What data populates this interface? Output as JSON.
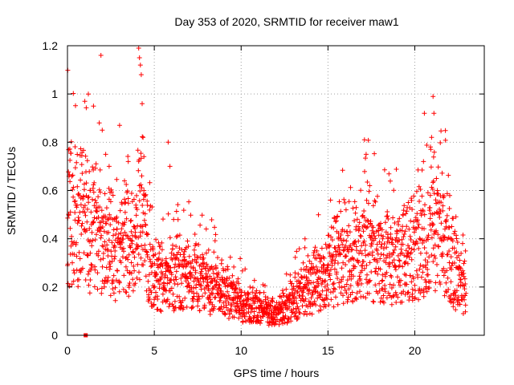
{
  "chart_data": {
    "type": "scatter",
    "title": "Day 353 of 2020, SRMTID for receiver maw1",
    "xlabel": "GPS time / hours",
    "ylabel": "SRMTID / TECUs",
    "xlim": [
      0,
      24
    ],
    "ylim": [
      0,
      1.2
    ],
    "x_ticks": [
      0,
      5,
      10,
      15,
      20
    ],
    "x_tick_labels": [
      "0",
      "5",
      "10",
      "15",
      "20"
    ],
    "y_ticks": [
      0,
      0.2,
      0.4,
      0.6,
      0.8,
      1,
      1.2
    ],
    "y_tick_labels": [
      "0",
      "0.2",
      "0.4",
      "0.6",
      "0.8",
      "1",
      "1.2"
    ],
    "grid": true,
    "marker": "+",
    "color": "#ff0000",
    "series": [
      {
        "name": "SRMTID maw1",
        "envelope": [
          [
            0.0,
            0.45
          ],
          [
            0.5,
            0.42
          ],
          [
            1.0,
            0.4
          ],
          [
            1.5,
            0.38
          ],
          [
            2.0,
            0.36
          ],
          [
            2.5,
            0.33
          ],
          [
            3.0,
            0.3
          ],
          [
            3.5,
            0.32
          ],
          [
            4.0,
            0.4
          ],
          [
            4.3,
            0.45
          ],
          [
            4.6,
            0.3
          ],
          [
            5.0,
            0.22
          ],
          [
            5.5,
            0.2
          ],
          [
            6.0,
            0.22
          ],
          [
            6.5,
            0.23
          ],
          [
            7.0,
            0.24
          ],
          [
            7.5,
            0.22
          ],
          [
            8.0,
            0.2
          ],
          [
            8.5,
            0.18
          ],
          [
            9.0,
            0.15
          ],
          [
            9.5,
            0.14
          ],
          [
            10.0,
            0.12
          ],
          [
            10.5,
            0.11
          ],
          [
            11.0,
            0.1
          ],
          [
            11.5,
            0.09
          ],
          [
            12.0,
            0.08
          ],
          [
            12.5,
            0.1
          ],
          [
            13.0,
            0.13
          ],
          [
            13.5,
            0.16
          ],
          [
            14.0,
            0.18
          ],
          [
            14.5,
            0.2
          ],
          [
            15.0,
            0.24
          ],
          [
            15.5,
            0.27
          ],
          [
            16.0,
            0.29
          ],
          [
            16.5,
            0.31
          ],
          [
            17.0,
            0.33
          ],
          [
            17.5,
            0.31
          ],
          [
            18.0,
            0.29
          ],
          [
            18.5,
            0.28
          ],
          [
            19.0,
            0.28
          ],
          [
            19.5,
            0.29
          ],
          [
            20.0,
            0.31
          ],
          [
            20.5,
            0.35
          ],
          [
            21.0,
            0.42
          ],
          [
            21.5,
            0.38
          ],
          [
            22.0,
            0.3
          ],
          [
            22.5,
            0.2
          ],
          [
            23.0,
            0.15
          ]
        ],
        "spikes": [
          [
            1.0,
            0.97
          ],
          [
            1.2,
            1.0
          ],
          [
            1.5,
            0.95
          ],
          [
            1.93,
            1.16
          ],
          [
            2.0,
            0.85
          ],
          [
            2.2,
            0.75
          ],
          [
            2.4,
            0.7
          ],
          [
            3.0,
            0.87
          ],
          [
            3.5,
            0.72
          ],
          [
            4.1,
            1.19
          ],
          [
            4.15,
            1.15
          ],
          [
            4.2,
            1.12
          ],
          [
            4.25,
            1.08
          ],
          [
            4.3,
            0.96
          ],
          [
            4.35,
            0.82
          ],
          [
            5.8,
            0.8
          ],
          [
            5.9,
            0.7
          ],
          [
            17.1,
            0.81
          ],
          [
            17.2,
            0.75
          ],
          [
            17.4,
            0.62
          ],
          [
            20.5,
            0.72
          ],
          [
            20.9,
            0.78
          ],
          [
            21.05,
            0.99
          ],
          [
            21.1,
            0.92
          ],
          [
            21.3,
            0.6
          ]
        ],
        "special_point": [
          1.05,
          0.0
        ]
      }
    ]
  }
}
